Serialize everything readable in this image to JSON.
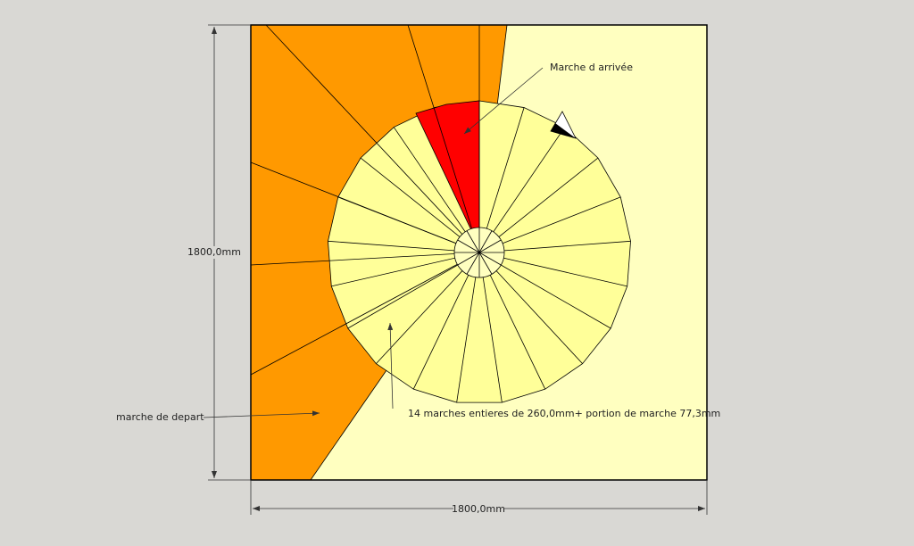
{
  "annotations": {
    "arrival": "Marche d arrivée",
    "departure": "marche de depart",
    "steps": "14 marches entieres de 260,0mm+ portion de marche 77,3mm"
  },
  "dimensions": {
    "vertical": "1800,0mm",
    "horizontal": "1800,0mm"
  }
}
